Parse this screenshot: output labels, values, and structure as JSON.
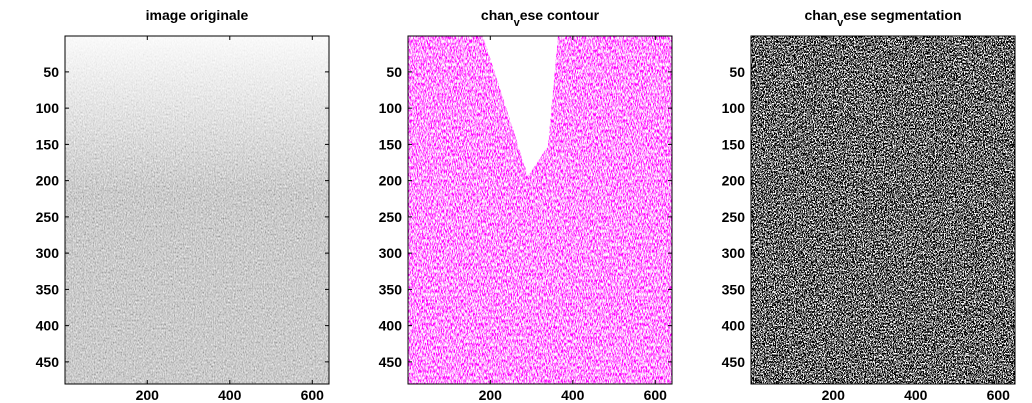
{
  "panels": [
    {
      "title": {
        "base": "image originale"
      },
      "style": "gray",
      "xlim": [
        0.5,
        640.5
      ],
      "ylim": [
        0.5,
        480.5
      ],
      "xticks": [
        200,
        400,
        600
      ],
      "yticks": [
        50,
        100,
        150,
        200,
        250,
        300,
        350,
        400,
        450
      ]
    },
    {
      "title": {
        "base": "chan",
        "sub": "v",
        "rest": "ese contour"
      },
      "style": "magenta",
      "xlim": [
        0.5,
        640.5
      ],
      "ylim": [
        0.5,
        480.5
      ],
      "xticks": [
        200,
        400,
        600
      ],
      "yticks": [
        50,
        100,
        150,
        200,
        250,
        300,
        350,
        400,
        450
      ]
    },
    {
      "title": {
        "base": "chan",
        "sub": "v",
        "rest": "ese segmentation"
      },
      "style": "binary",
      "xlim": [
        0.5,
        640.5
      ],
      "ylim": [
        0.5,
        480.5
      ],
      "xticks": [
        200,
        400,
        600
      ],
      "yticks": [
        50,
        100,
        150,
        200,
        250,
        300,
        350,
        400,
        450
      ]
    }
  ]
}
